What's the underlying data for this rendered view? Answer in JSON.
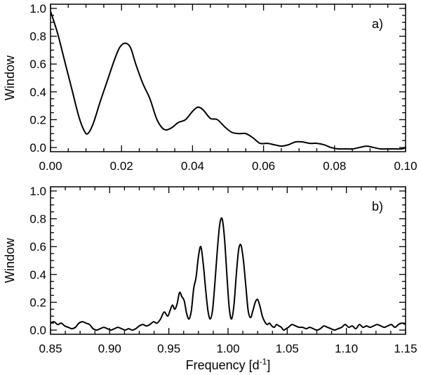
{
  "chart_data": [
    {
      "type": "line",
      "panel_label": "a)",
      "ylabel": "Window",
      "xlabel": "",
      "xlim": [
        0.0,
        0.1
      ],
      "ylim": [
        -0.03,
        1.03
      ],
      "x_ticks": [
        0.0,
        0.02,
        0.04,
        0.06,
        0.08,
        0.1
      ],
      "x_tick_labels": [
        "0.00",
        "0.02",
        "0.04",
        "0.06",
        "0.08",
        "0.10"
      ],
      "y_ticks": [
        0.0,
        0.2,
        0.4,
        0.6,
        0.8,
        1.0
      ],
      "y_tick_labels": [
        "0.0",
        "0.2",
        "0.4",
        "0.6",
        "0.8",
        "1.0"
      ],
      "series": [
        {
          "x": [
            0.0,
            0.002,
            0.004,
            0.006,
            0.008,
            0.0095,
            0.0105,
            0.012,
            0.014,
            0.016,
            0.018,
            0.0195,
            0.021,
            0.0225,
            0.024,
            0.026,
            0.028,
            0.03,
            0.032,
            0.034,
            0.036,
            0.038,
            0.04,
            0.0415,
            0.043,
            0.045,
            0.047,
            0.049,
            0.051,
            0.053,
            0.055,
            0.057,
            0.059,
            0.061,
            0.063,
            0.065,
            0.067,
            0.069,
            0.071,
            0.073,
            0.075,
            0.077,
            0.079,
            0.081,
            0.083,
            0.085,
            0.087,
            0.089,
            0.091,
            0.093,
            0.095,
            0.097,
            0.099,
            0.1
          ],
          "y": [
            0.98,
            0.82,
            0.62,
            0.42,
            0.22,
            0.12,
            0.1,
            0.17,
            0.33,
            0.48,
            0.63,
            0.72,
            0.75,
            0.72,
            0.6,
            0.46,
            0.35,
            0.2,
            0.13,
            0.14,
            0.18,
            0.2,
            0.26,
            0.29,
            0.27,
            0.21,
            0.2,
            0.15,
            0.11,
            0.1,
            0.1,
            0.07,
            0.03,
            0.03,
            0.02,
            0.01,
            0.02,
            0.04,
            0.04,
            0.03,
            0.03,
            0.02,
            0.0,
            -0.01,
            -0.01,
            -0.01,
            0.0,
            0.01,
            0.0,
            -0.01,
            -0.01,
            -0.01,
            -0.01,
            0.0
          ]
        }
      ]
    },
    {
      "type": "line",
      "panel_label": "b)",
      "ylabel": "Window",
      "xlabel": "Frequency [d",
      "xlabel_sup": "-1",
      "xlabel_end": "]",
      "xlim": [
        0.85,
        1.15
      ],
      "ylim": [
        -0.03,
        1.03
      ],
      "x_ticks": [
        0.85,
        0.9,
        0.95,
        1.0,
        1.05,
        1.1,
        1.15
      ],
      "x_tick_labels": [
        "0.85",
        "0.90",
        "0.95",
        "1.00",
        "1.05",
        "1.10",
        "1.15"
      ],
      "y_ticks": [
        0.0,
        0.2,
        0.4,
        0.6,
        0.8,
        1.0
      ],
      "y_tick_labels": [
        "0.0",
        "0.2",
        "0.4",
        "0.6",
        "0.8",
        "1.0"
      ],
      "series": [
        {
          "x": [
            0.85,
            0.853,
            0.856,
            0.859,
            0.862,
            0.865,
            0.868,
            0.871,
            0.874,
            0.877,
            0.88,
            0.883,
            0.886,
            0.889,
            0.892,
            0.895,
            0.898,
            0.901,
            0.904,
            0.907,
            0.91,
            0.913,
            0.916,
            0.919,
            0.922,
            0.925,
            0.928,
            0.931,
            0.934,
            0.937,
            0.94,
            0.943,
            0.946,
            0.949,
            0.951,
            0.953,
            0.955,
            0.957,
            0.959,
            0.961,
            0.963,
            0.965,
            0.967,
            0.969,
            0.971,
            0.973,
            0.975,
            0.977,
            0.979,
            0.981,
            0.983,
            0.985,
            0.987,
            0.989,
            0.991,
            0.993,
            0.995,
            0.997,
            0.999,
            1.001,
            1.003,
            1.005,
            1.007,
            1.009,
            1.011,
            1.013,
            1.015,
            1.017,
            1.019,
            1.021,
            1.023,
            1.025,
            1.027,
            1.029,
            1.031,
            1.033,
            1.035,
            1.037,
            1.039,
            1.041,
            1.043,
            1.045,
            1.047,
            1.049,
            1.051,
            1.054,
            1.057,
            1.06,
            1.063,
            1.066,
            1.069,
            1.072,
            1.075,
            1.078,
            1.081,
            1.084,
            1.087,
            1.09,
            1.093,
            1.096,
            1.099,
            1.102,
            1.105,
            1.108,
            1.111,
            1.114,
            1.117,
            1.12,
            1.123,
            1.126,
            1.129,
            1.132,
            1.135,
            1.138,
            1.141,
            1.144,
            1.147,
            1.15
          ],
          "y": [
            0.05,
            0.06,
            0.04,
            0.05,
            0.03,
            0.02,
            0.01,
            0.02,
            0.05,
            0.06,
            0.05,
            0.04,
            0.01,
            0.0,
            0.01,
            0.02,
            0.01,
            0.0,
            0.01,
            0.02,
            0.01,
            0.0,
            0.01,
            0.0,
            0.01,
            0.03,
            0.04,
            0.03,
            0.04,
            0.06,
            0.05,
            0.08,
            0.13,
            0.1,
            0.14,
            0.18,
            0.15,
            0.19,
            0.27,
            0.24,
            0.21,
            0.12,
            0.08,
            0.14,
            0.3,
            0.38,
            0.53,
            0.6,
            0.48,
            0.3,
            0.14,
            0.08,
            0.15,
            0.35,
            0.58,
            0.76,
            0.8,
            0.66,
            0.4,
            0.16,
            0.08,
            0.18,
            0.4,
            0.58,
            0.61,
            0.5,
            0.32,
            0.14,
            0.09,
            0.14,
            0.2,
            0.22,
            0.17,
            0.1,
            0.06,
            0.04,
            0.05,
            0.03,
            0.02,
            0.04,
            0.03,
            0.02,
            0.0,
            0.01,
            0.02,
            0.04,
            0.03,
            0.02,
            0.02,
            0.01,
            0.02,
            0.01,
            0.0,
            0.01,
            0.03,
            0.02,
            0.01,
            0.0,
            0.01,
            0.02,
            0.04,
            0.02,
            0.03,
            0.01,
            0.04,
            0.02,
            0.03,
            0.02,
            0.03,
            0.04,
            0.03,
            0.02,
            0.03,
            0.04,
            0.02,
            0.04,
            0.05,
            0.04
          ]
        }
      ]
    }
  ]
}
